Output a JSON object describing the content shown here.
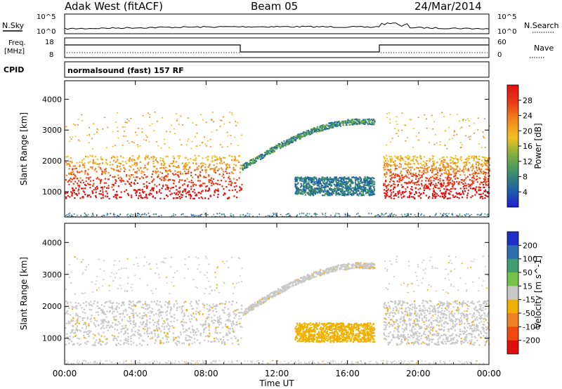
{
  "header": {
    "station": "Adak West (fitACF)",
    "beam": "Beam 05",
    "date": "24/Mar/2014"
  },
  "top_panels": {
    "nsky_label": "N.Sky",
    "nsearch_label": "N.Search",
    "noise_ticks": [
      "10^5",
      "10^0"
    ],
    "freq_label": "Freq.",
    "freq_unit": "[MHz]",
    "freq_ticks": [
      "18",
      "8"
    ],
    "nave_label": "Nave",
    "nave_ticks": [
      "60",
      "0"
    ],
    "cpid_label": "CPID",
    "cpid_value": "normalsound (fast) 157 RF"
  },
  "chart_data": [
    {
      "type": "heatmap",
      "panel": "power",
      "ylabel": "Slant Range [km]",
      "ylim": [
        180,
        4600
      ],
      "y_ticks": [
        1000,
        2000,
        3000,
        4000
      ],
      "colorbar_label": "Power [dB]",
      "colorbar_ticks": [
        4,
        8,
        12,
        16,
        20,
        24,
        28
      ],
      "colorbar_colors": [
        "#1d1fd0",
        "#2060a8",
        "#3b8f6a",
        "#7fb040",
        "#f0c020",
        "#f08a1e",
        "#e83a17",
        "#e01010"
      ],
      "regions": [
        {
          "name": "strong-backscatter-evening",
          "t_start_h": 0,
          "t_end_h": 10,
          "range_low_km": 800,
          "range_high_km": 2200,
          "power_db": 30
        },
        {
          "name": "strong-backscatter-morning",
          "t_start_h": 18,
          "t_end_h": 24,
          "range_low_km": 800,
          "range_high_km": 2200,
          "power_db": 30
        },
        {
          "name": "daytime-arc",
          "t_start_h": 10,
          "t_end_h": 17.5,
          "range_low_km": 1800,
          "range_high_km": 3300,
          "power_db": 8
        },
        {
          "name": "daytime-lower-band",
          "t_start_h": 13,
          "t_end_h": 17.5,
          "range_low_km": 900,
          "range_high_km": 1500,
          "power_db": 6
        }
      ]
    },
    {
      "type": "heatmap",
      "panel": "velocity",
      "ylabel": "Slant Range [km]",
      "xlabel": "Time UT",
      "ylim": [
        180,
        4600
      ],
      "y_ticks": [
        1000,
        2000,
        3000,
        4000
      ],
      "x_ticks": [
        "00:00",
        "04:00",
        "08:00",
        "12:00",
        "16:00",
        "20:00",
        "00:00"
      ],
      "x_range_h": [
        0,
        24
      ],
      "colorbar_label": "Velocity [m s^-1]",
      "colorbar_ticks": [
        200,
        100,
        50,
        15,
        -15,
        -50,
        -100,
        -200
      ],
      "colorbar_colors": [
        "#1c2fc8",
        "#2e6fb0",
        "#3f9e70",
        "#74c24a",
        "#c8c8c8",
        "#f0b000",
        "#f08020",
        "#f04a10",
        "#e01010"
      ],
      "regions": [
        {
          "name": "ground-scatter-evening",
          "t_start_h": 0,
          "t_end_h": 10,
          "range_low_km": 800,
          "range_high_km": 2200,
          "velocity_ms": 0
        },
        {
          "name": "ground-scatter-morning",
          "t_start_h": 18,
          "t_end_h": 24,
          "range_low_km": 800,
          "range_high_km": 2200,
          "velocity_ms": 0
        },
        {
          "name": "daytime-arc",
          "t_start_h": 10,
          "t_end_h": 17.5,
          "range_low_km": 1800,
          "range_high_km": 3300,
          "velocity_ms": 0
        },
        {
          "name": "daytime-lower-band",
          "t_start_h": 13,
          "t_end_h": 17.5,
          "range_low_km": 900,
          "range_high_km": 1500,
          "velocity_ms": -60
        }
      ]
    }
  ]
}
